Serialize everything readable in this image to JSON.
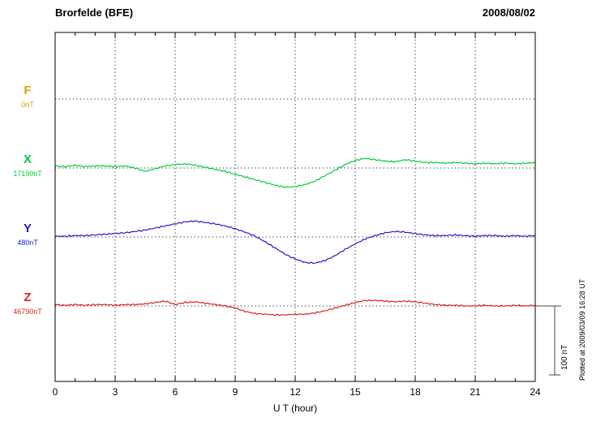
{
  "header": {
    "title": "Brorfelde (BFE)",
    "date": "2008/08/02"
  },
  "footer": {
    "plotted_at": "Plotted at 2009/03/09 16:28 UT"
  },
  "chart_data": {
    "type": "line",
    "title": "Brorfelde (BFE)",
    "date": "2008/08/02",
    "xlabel": "U T (hour)",
    "x_range": [
      0,
      24
    ],
    "x_ticks": [
      0,
      3,
      6,
      9,
      12,
      15,
      18,
      21,
      24
    ],
    "x_step_hours": 0.5,
    "grid": "dotted",
    "values_unit": "nT deviation from component baseline",
    "scale_bar": {
      "label": "100 nT",
      "nT": 100
    },
    "series": [
      {
        "name": "F",
        "baseline_label": "0nT",
        "baseline_nT": 0,
        "color": "#d9a400",
        "values": []
      },
      {
        "name": "X",
        "baseline_label": "17190nT",
        "baseline_nT": 17190,
        "color": "#00cc33",
        "values": [
          3,
          2,
          4,
          2,
          3,
          3,
          2,
          3,
          0,
          -5,
          -1,
          3,
          5,
          6,
          4,
          1,
          -2,
          -5,
          -9,
          -13,
          -17,
          -21,
          -25,
          -28,
          -27,
          -24,
          -19,
          -11,
          -3,
          5,
          11,
          14,
          12,
          10,
          9,
          12,
          10,
          8,
          8,
          7,
          8,
          7,
          6,
          7,
          6,
          7,
          6,
          7,
          8
        ]
      },
      {
        "name": "Y",
        "baseline_label": "480nT",
        "baseline_nT": 480,
        "color": "#1c1ccc",
        "values": [
          1,
          1,
          2,
          2,
          3,
          4,
          5,
          6,
          8,
          10,
          13,
          16,
          19,
          22,
          23,
          21,
          19,
          16,
          12,
          7,
          1,
          -7,
          -16,
          -25,
          -32,
          -37,
          -38,
          -34,
          -27,
          -18,
          -10,
          -3,
          2,
          6,
          8,
          7,
          5,
          3,
          2,
          2,
          3,
          2,
          1,
          2,
          2,
          1,
          2,
          1,
          2
        ]
      },
      {
        "name": "Z",
        "baseline_label": "46790nT",
        "baseline_nT": 46790,
        "color": "#dd1f1f",
        "values": [
          2,
          1,
          2,
          1,
          2,
          2,
          1,
          2,
          2,
          3,
          5,
          7,
          2,
          5,
          6,
          4,
          2,
          0,
          -3,
          -8,
          -11,
          -12,
          -13,
          -13,
          -12,
          -12,
          -10,
          -7,
          -3,
          1,
          5,
          8,
          8,
          7,
          6,
          7,
          6,
          4,
          2,
          1,
          1,
          0,
          0,
          1,
          0,
          0,
          1,
          0,
          1
        ]
      }
    ]
  }
}
